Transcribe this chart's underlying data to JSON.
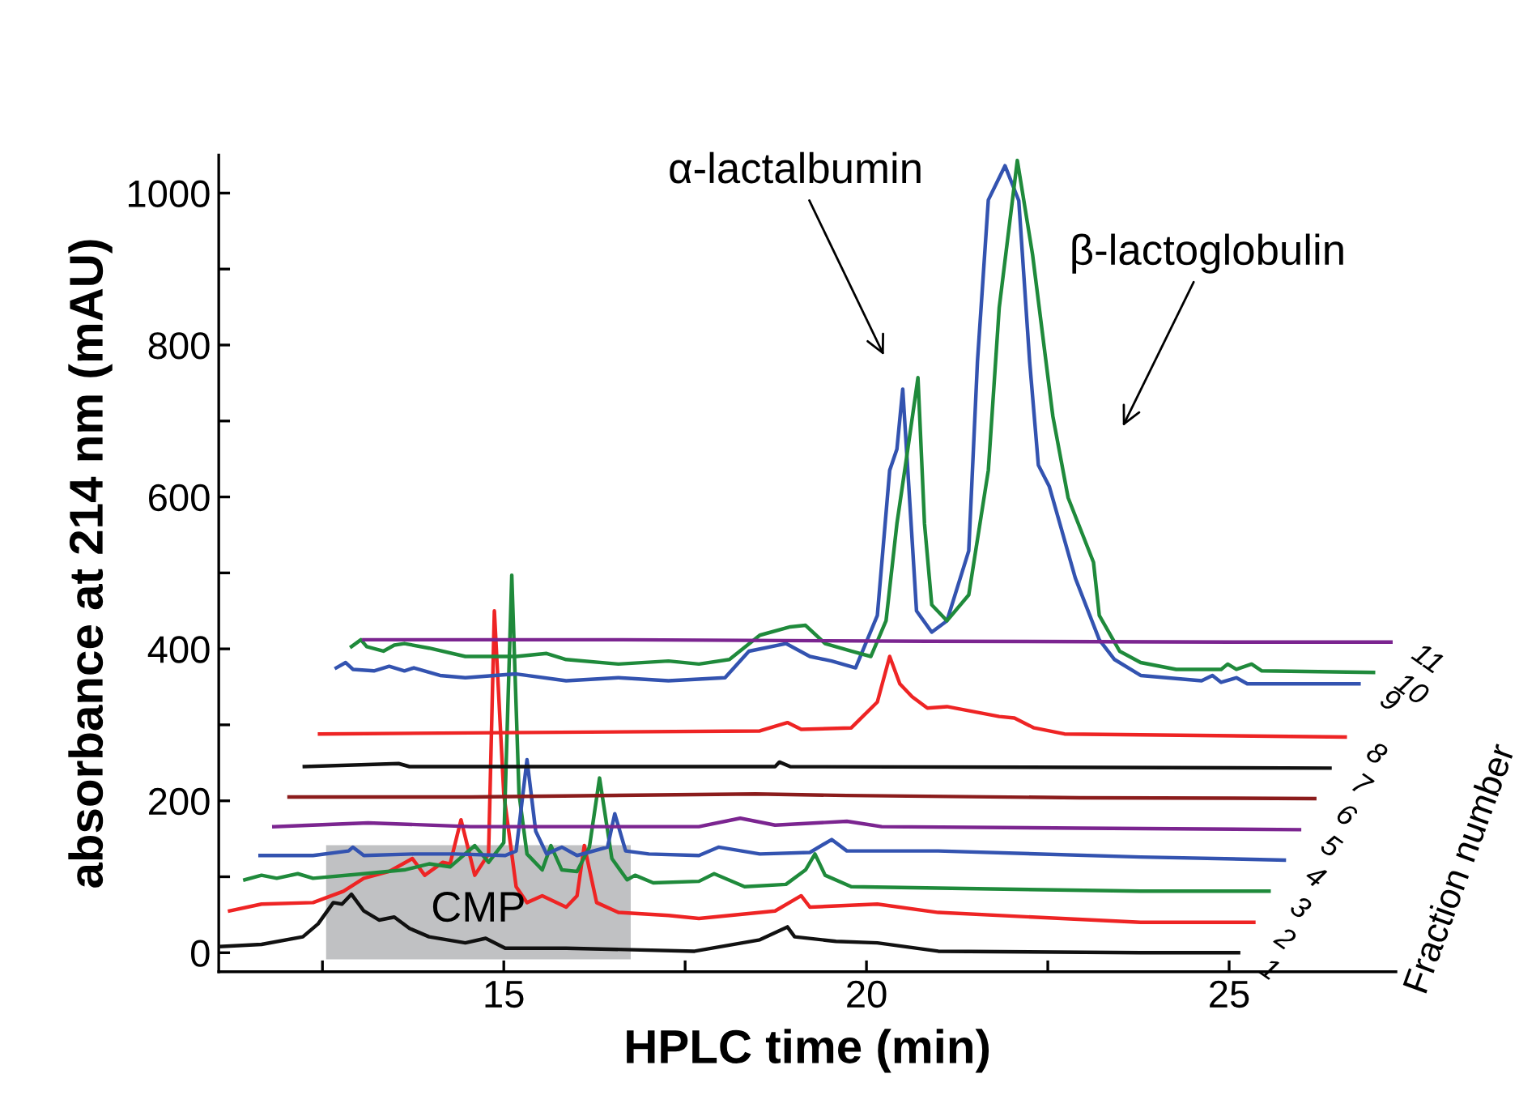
{
  "chart_data": {
    "type": "line",
    "xlabel": "HPLC time (min)",
    "ylabel": "absorbance at 214 nm (mAU)",
    "legend_title": "Fraction number",
    "xlim": [
      11.07,
      27.3
    ],
    "ylim": [
      -25,
      1050
    ],
    "xticks": [
      {
        "value": 12.5,
        "label": null
      },
      15,
      {
        "value": 17.5,
        "label": null
      },
      20,
      {
        "value": 22.5,
        "label": null
      },
      25
    ],
    "yticks": [
      0,
      {
        "value": 100,
        "label": null
      },
      200,
      {
        "value": 300,
        "label": null
      },
      400,
      {
        "value": 500,
        "label": null
      },
      600,
      {
        "value": 700,
        "label": null
      },
      800,
      {
        "value": 900,
        "label": null
      },
      1000
    ],
    "grid": false,
    "bands": [
      {
        "axis": "x",
        "from": 12.55,
        "to": 16.75,
        "label": "CMP",
        "color": "#c0c1c3"
      }
    ],
    "annotations": [
      "α-lactalbumin",
      "β-lactoglobulin"
    ],
    "series": [
      {
        "name": "1",
        "color": "#111111",
        "x": [
          11.07,
          11.66,
          12.23,
          12.44,
          12.65,
          12.77,
          12.9,
          13.07,
          13.28,
          13.49,
          13.7,
          13.97,
          14.47,
          14.75,
          15.02,
          15.86,
          17.63,
          18.53,
          18.91,
          19.01,
          19.58,
          20.15,
          20.99,
          23.78,
          25.13
        ],
        "values": [
          8,
          11,
          21,
          38,
          66,
          64,
          77,
          55,
          43,
          47,
          32,
          21,
          13,
          19,
          6,
          6,
          2,
          17,
          34,
          21,
          15,
          13,
          2,
          0,
          0
        ]
      },
      {
        "name": "2",
        "color": "#ee2424",
        "x": [
          11.22,
          11.66,
          12.37,
          12.79,
          13.07,
          13.42,
          13.74,
          13.91,
          14.16,
          14.26,
          14.41,
          14.6,
          14.79,
          14.87,
          15.0,
          15.17,
          15.32,
          15.53,
          15.86,
          16.01,
          16.11,
          16.28,
          16.58,
          17.27,
          17.69,
          18.74,
          19.1,
          19.22,
          20.15,
          20.99,
          23.78,
          25.34
        ],
        "values": [
          55,
          64,
          66,
          81,
          98,
          107,
          124,
          102,
          119,
          117,
          175,
          102,
          130,
          450,
          209,
          87,
          66,
          75,
          60,
          75,
          141,
          66,
          53,
          49,
          45,
          55,
          75,
          60,
          64,
          53,
          40,
          40
        ]
      },
      {
        "name": "3",
        "color": "#1f8a3b",
        "x": [
          11.43,
          11.66,
          11.87,
          12.16,
          12.37,
          13.07,
          13.63,
          13.97,
          14.26,
          14.6,
          14.79,
          15.0,
          15.11,
          15.21,
          15.32,
          15.53,
          15.65,
          15.8,
          16.01,
          16.18,
          16.32,
          16.49,
          16.7,
          16.81,
          17.06,
          17.69,
          17.9,
          18.32,
          18.89,
          19.16,
          19.29,
          19.43,
          19.79,
          20.99,
          23.78,
          25.55
        ],
        "values": [
          96,
          102,
          98,
          104,
          98,
          104,
          109,
          117,
          113,
          141,
          119,
          145,
          497,
          209,
          130,
          109,
          141,
          109,
          107,
          139,
          230,
          124,
          96,
          102,
          92,
          94,
          104,
          87,
          90,
          109,
          130,
          102,
          87,
          85,
          81,
          81
        ]
      },
      {
        "name": "4",
        "color": "#3353b0",
        "x": [
          11.64,
          12.37,
          12.86,
          12.92,
          13.07,
          13.76,
          14.33,
          15.02,
          15.17,
          15.32,
          15.44,
          15.59,
          15.8,
          16.01,
          16.43,
          16.53,
          16.68,
          17.0,
          17.69,
          17.96,
          18.53,
          19.22,
          19.52,
          19.73,
          20.99,
          23.78,
          25.76
        ],
        "values": [
          128,
          128,
          134,
          139,
          128,
          130,
          130,
          128,
          134,
          254,
          160,
          130,
          139,
          128,
          139,
          183,
          134,
          130,
          128,
          139,
          130,
          132,
          149,
          134,
          134,
          126,
          122
        ]
      },
      {
        "name": "5",
        "color": "#7b2590",
        "x": [
          11.83,
          13.13,
          14.54,
          17.69,
          18.26,
          18.74,
          19.73,
          20.21,
          22.94,
          25.97
        ],
        "values": [
          166,
          171,
          166,
          166,
          177,
          168,
          173,
          166,
          164,
          162
        ]
      },
      {
        "name": "6",
        "color": "#8b1c1c",
        "x": [
          12.04,
          14.54,
          18.47,
          19.73,
          22.94,
          26.18
        ],
        "values": [
          205,
          205,
          209,
          207,
          204,
          203
        ]
      },
      {
        "name": "7",
        "color": "#111111",
        "x": [
          12.25,
          13.55,
          13.7,
          18.74,
          18.8,
          18.95,
          26.39
        ],
        "values": [
          245,
          249,
          245,
          245,
          251,
          245,
          243
        ]
      },
      {
        "name": "8",
        "color": "#ee2424",
        "x": [
          12.46,
          18.53,
          18.91,
          19.1,
          19.79,
          20.15,
          20.32,
          20.46,
          20.63,
          20.84,
          21.11,
          21.83,
          22.04,
          22.31,
          22.73,
          26.6
        ],
        "values": [
          288,
          292,
          303,
          294,
          296,
          330,
          390,
          354,
          337,
          322,
          324,
          311,
          309,
          296,
          288,
          284
        ]
      },
      {
        "name": "9",
        "color": "#3353b0",
        "x": [
          12.69,
          12.82,
          12.92,
          13.21,
          13.42,
          13.63,
          13.76,
          14.12,
          14.47,
          15.17,
          15.86,
          16.58,
          17.27,
          18.05,
          18.38,
          18.89,
          19.22,
          19.52,
          19.85,
          20.15,
          20.32,
          20.42,
          20.5,
          20.57,
          20.69,
          20.9,
          21.11,
          21.41,
          21.53,
          21.68,
          21.91,
          22.1,
          22.25,
          22.37,
          22.52,
          22.88,
          23.21,
          23.42,
          23.78,
          24.62,
          24.77,
          24.89,
          25.1,
          25.25,
          26.79
        ],
        "values": [
          375,
          382,
          373,
          371,
          377,
          371,
          375,
          365,
          362,
          367,
          358,
          362,
          358,
          362,
          397,
          407,
          390,
          384,
          375,
          444,
          635,
          663,
          742,
          635,
          450,
          422,
          437,
          529,
          778,
          991,
          1036,
          990,
          778,
          642,
          614,
          493,
          412,
          386,
          365,
          358,
          365,
          356,
          362,
          354,
          354
        ]
      },
      {
        "name": "10",
        "color": "#1f8a3b",
        "x": [
          12.9,
          13.03,
          13.11,
          13.34,
          13.49,
          13.63,
          13.97,
          14.47,
          15.17,
          15.59,
          15.86,
          16.58,
          17.27,
          17.69,
          18.11,
          18.53,
          18.95,
          19.16,
          19.43,
          19.79,
          20.06,
          20.27,
          20.42,
          20.57,
          20.71,
          20.8,
          20.9,
          21.11,
          21.41,
          21.68,
          21.83,
          22.08,
          22.29,
          22.57,
          22.78,
          23.13,
          23.21,
          23.49,
          23.78,
          24.27,
          24.89,
          24.98,
          25.1,
          25.31,
          25.45,
          26.99
        ],
        "values": [
          403,
          412,
          403,
          397,
          405,
          407,
          401,
          390,
          390,
          394,
          386,
          380,
          384,
          380,
          386,
          418,
          429,
          431,
          407,
          397,
          390,
          437,
          565,
          663,
          757,
          565,
          458,
          437,
          471,
          635,
          849,
          1043,
          919,
          706,
          599,
          514,
          444,
          397,
          382,
          373,
          373,
          380,
          373,
          380,
          371,
          369
        ]
      },
      {
        "name": "11",
        "color": "#7b2590",
        "x": [
          13.07,
          16.64,
          20.84,
          25.04,
          27.23
        ],
        "values": [
          412,
          412,
          410,
          409,
          409
        ]
      }
    ]
  }
}
